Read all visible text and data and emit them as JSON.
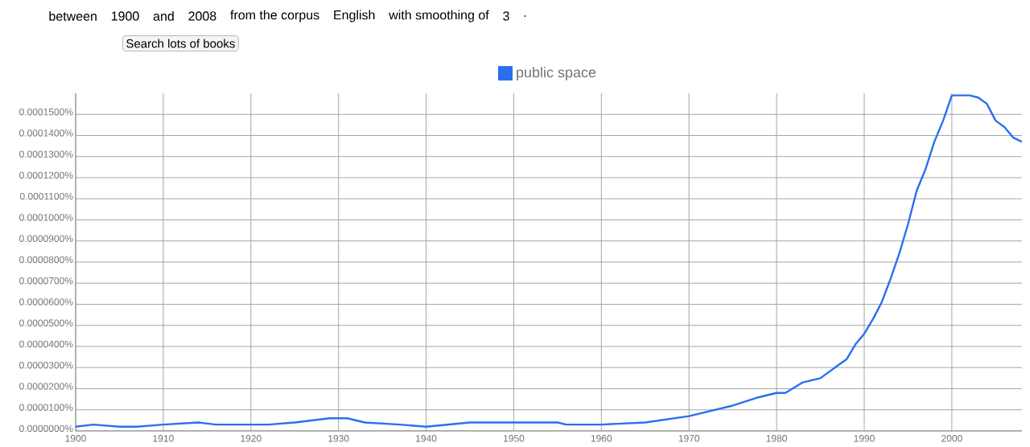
{
  "chart_data": {
    "type": "line",
    "annotations": [
      "between",
      "1900",
      "and",
      "2008",
      "from the corpus",
      "English",
      "with smoothing of",
      "3",
      ".",
      "Search lots of books"
    ],
    "x": [
      1900,
      1902,
      1905,
      1907,
      1910,
      1914,
      1916,
      1920,
      1922,
      1925,
      1929,
      1931,
      1933,
      1937,
      1940,
      1945,
      1948,
      1950,
      1955,
      1956,
      1960,
      1965,
      1970,
      1975,
      1978,
      1980,
      1981,
      1983,
      1985,
      1987,
      1988,
      1989,
      1990,
      1991,
      1992,
      1993,
      1994,
      1995,
      1996,
      1997,
      1998,
      1999,
      2000,
      2002,
      2003,
      2004,
      2005,
      2006,
      2007,
      2008
    ],
    "series": [
      {
        "name": "public space",
        "color": "#2a6ff0",
        "values": [
          2e-06,
          3e-06,
          2e-06,
          2e-06,
          3e-06,
          4e-06,
          3e-06,
          3e-06,
          3e-06,
          4e-06,
          6e-06,
          6e-06,
          4e-06,
          3e-06,
          2e-06,
          4e-06,
          4e-06,
          4e-06,
          4e-06,
          3e-06,
          3e-06,
          4e-06,
          7e-06,
          1.2e-05,
          1.6e-05,
          1.8e-05,
          1.8e-05,
          2.3e-05,
          2.5e-05,
          3.1e-05,
          3.4e-05,
          4.1e-05,
          4.6e-05,
          5.3e-05,
          6.1e-05,
          7.2e-05,
          8.4e-05,
          9.8e-05,
          0.000114,
          0.000124,
          0.000137,
          0.000147,
          0.000159,
          0.000159,
          0.000158,
          0.000155,
          0.000147,
          0.000144,
          0.000139,
          0.000137
        ]
      }
    ],
    "xlim": [
      1900,
      2008
    ],
    "xticks": [
      1900,
      1910,
      1920,
      1930,
      1940,
      1950,
      1960,
      1970,
      1980,
      1990,
      2000
    ],
    "ylim": [
      0,
      0.00016
    ],
    "yticks": [
      {
        "value": 0,
        "label": "0.0000000%"
      },
      {
        "value": 1e-05,
        "label": "0.0000100%"
      },
      {
        "value": 2e-05,
        "label": "0.0000200%"
      },
      {
        "value": 3e-05,
        "label": "0.0000300%"
      },
      {
        "value": 4e-05,
        "label": "0.0000400%"
      },
      {
        "value": 5e-05,
        "label": "0.0000500%"
      },
      {
        "value": 6e-05,
        "label": "0.0000600%"
      },
      {
        "value": 7e-05,
        "label": "0.0000700%"
      },
      {
        "value": 8e-05,
        "label": "0.0000800%"
      },
      {
        "value": 9e-05,
        "label": "0.0000900%"
      },
      {
        "value": 0.0001,
        "label": "0.0001000%"
      },
      {
        "value": 0.00011,
        "label": "0.0001100%"
      },
      {
        "value": 0.00012,
        "label": "0.0001200%"
      },
      {
        "value": 0.00013,
        "label": "0.0001300%"
      },
      {
        "value": 0.00014,
        "label": "0.0001400%"
      },
      {
        "value": 0.00015,
        "label": "0.0001500%"
      }
    ],
    "grid": true,
    "legend": "top",
    "marker": "none",
    "line_style": "solid"
  }
}
